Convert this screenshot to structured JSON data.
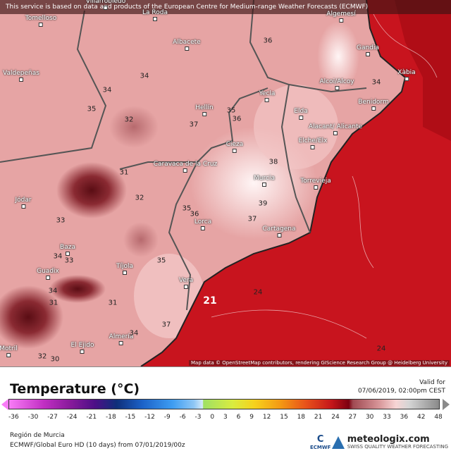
{
  "banner": "This service is based on data and products of the European Centre for Medium-range Weather Forecasts (ECMWF)",
  "attribution": "Map data © OpenStreetMap contributors, rendering GIScience Research Group @ Heidelberg University",
  "cities": [
    {
      "name": "Villarrobledo"
    },
    {
      "name": "La Roda"
    },
    {
      "name": "Tomelloso"
    },
    {
      "name": "Albacete"
    },
    {
      "name": "Algemesí"
    },
    {
      "name": "Gandia"
    },
    {
      "name": "Xàbia"
    },
    {
      "name": "Valdepeñas"
    },
    {
      "name": "Alcoi/Alcoy"
    },
    {
      "name": "Benidorm"
    },
    {
      "name": "Yecla"
    },
    {
      "name": "Hellín"
    },
    {
      "name": "Elda"
    },
    {
      "name": "Alacant/ Alicante"
    },
    {
      "name": "Elche/Elx"
    },
    {
      "name": "Cieza"
    },
    {
      "name": "Caravaca de la Cruz"
    },
    {
      "name": "Murcia"
    },
    {
      "name": "Torrevieja"
    },
    {
      "name": "Jódar"
    },
    {
      "name": "Lorca"
    },
    {
      "name": "Cartagena"
    },
    {
      "name": "Baza"
    },
    {
      "name": "Tíjola"
    },
    {
      "name": "Guadix"
    },
    {
      "name": "Vera"
    },
    {
      "name": "Almería"
    },
    {
      "name": "El Ejido"
    },
    {
      "name": "Motril"
    }
  ],
  "contour_labels": [
    "36",
    "34",
    "34",
    "35",
    "32",
    "37",
    "35",
    "36",
    "38",
    "39",
    "37",
    "35",
    "36",
    "34",
    "31",
    "32",
    "33",
    "34",
    "33",
    "35",
    "34",
    "31",
    "31",
    "37",
    "34",
    "24",
    "24",
    "21",
    "32",
    "30"
  ],
  "legend": {
    "title": "Temperature (°C)",
    "valid_label": "Valid for",
    "valid_time": "07/06/2019, 02:00pm CEST",
    "ticks": [
      "-36",
      "-30",
      "-27",
      "-24",
      "-21",
      "-18",
      "-15",
      "-12",
      "-9",
      "-6",
      "-3",
      "0",
      "3",
      "6",
      "9",
      "12",
      "15",
      "18",
      "21",
      "24",
      "27",
      "30",
      "33",
      "36",
      "42",
      "48"
    ],
    "region": "Región de Murcia",
    "model": "ECMWF/Global Euro HD (10 days) from 07/01/2019/00z",
    "ecmwf_logo": "ECMWF",
    "brand": "meteologix.com",
    "brand_tagline": "SWISS QUALITY WEATHER FORECASTING"
  }
}
